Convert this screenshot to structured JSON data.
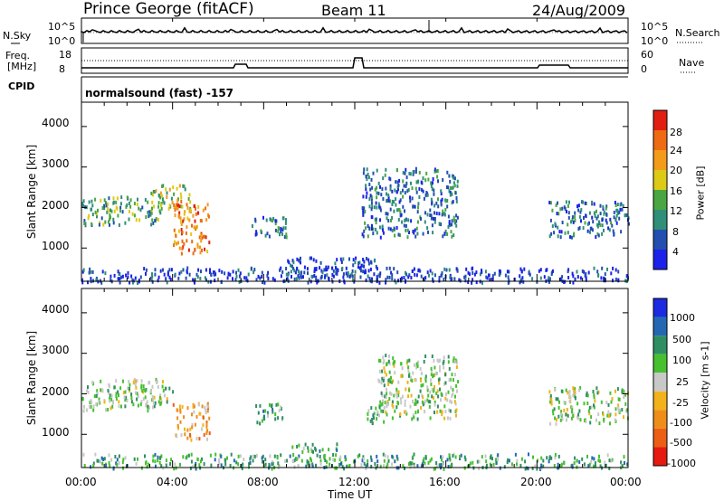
{
  "header": {
    "station": "Prince George (fitACF)",
    "beam": "Beam 11",
    "date": "24/Aug/2009"
  },
  "summary": {
    "nsky_label": "N.Sky",
    "nsky_ticks": [
      "10^5",
      "10^0"
    ],
    "nsearch_label": "N.Search",
    "nsearch_ticks": [
      "10^5",
      "10^0"
    ],
    "freq_label_1": "Freq.",
    "freq_label_2": "[MHz]",
    "freq_ticks": [
      "18",
      "8"
    ],
    "nave_label": "Nave",
    "nave_ticks": [
      "60",
      "0"
    ],
    "cpid_label": "CPID",
    "cpid_text": "normalsound (fast) -157"
  },
  "chart_data": [
    {
      "type": "heatmap",
      "name": "power-panel",
      "ylabel": "Slant Range [km]",
      "xlabel": "",
      "x_range_hours": [
        0,
        24
      ],
      "ylim": [
        180,
        4600
      ],
      "y_ticks": [
        1000,
        2000,
        3000,
        4000
      ],
      "colorbar": {
        "label": "Power [dB]",
        "ticks": [
          "4",
          "8",
          "12",
          "16",
          "20",
          "24",
          "28"
        ],
        "colors": [
          "#1b23e8",
          "#224fb0",
          "#2f8f78",
          "#4aa642",
          "#dcca16",
          "#f39b1a",
          "#ee6a13",
          "#e21e10"
        ]
      },
      "regions": [
        {
          "t0": 0.0,
          "t1": 3.5,
          "r0": 1600,
          "r1": 2300,
          "level": 3
        },
        {
          "t0": 3.0,
          "t1": 4.8,
          "r0": 2000,
          "r1": 2600,
          "level": 4
        },
        {
          "t0": 4.0,
          "t1": 5.6,
          "r0": 900,
          "r1": 2200,
          "level": 6
        },
        {
          "t0": 7.3,
          "t1": 9.0,
          "r0": 1300,
          "r1": 1800,
          "level": 2
        },
        {
          "t0": 9.0,
          "t1": 13.0,
          "r0": 300,
          "r1": 800,
          "level": 1
        },
        {
          "t0": 12.3,
          "t1": 16.5,
          "r0": 1300,
          "r1": 3000,
          "level": 2
        },
        {
          "t0": 20.5,
          "t1": 24.0,
          "r0": 1300,
          "r1": 2200,
          "level": 2
        },
        {
          "t0": 0.0,
          "t1": 24.0,
          "r0": 180,
          "r1": 550,
          "level": 1
        }
      ]
    },
    {
      "type": "heatmap",
      "name": "velocity-panel",
      "ylabel": "Slant Range [km]",
      "xlabel": "Time UT",
      "x_range_hours": [
        0,
        24
      ],
      "x_ticks": [
        "00:00",
        "04:00",
        "08:00",
        "12:00",
        "16:00",
        "20:00",
        "00:00"
      ],
      "ylim": [
        180,
        4600
      ],
      "y_ticks": [
        1000,
        2000,
        3000,
        4000
      ],
      "colorbar": {
        "label": "Velocity [m s-1]",
        "ticks": [
          "1000",
          "500",
          "100",
          "25",
          "-25",
          "-100",
          "-500",
          "-1000"
        ],
        "colors": [
          "#1c2ae0",
          "#2468b4",
          "#2f8f62",
          "#47c030",
          "#c8c8c8",
          "#f2b21c",
          "#ef8d19",
          "#ec5e15",
          "#e61a10"
        ]
      },
      "regions": [
        {
          "t0": 0.0,
          "t1": 4.0,
          "r0": 1600,
          "r1": 2400,
          "level": 4
        },
        {
          "t0": 4.0,
          "t1": 5.6,
          "r0": 900,
          "r1": 1800,
          "level": 6
        },
        {
          "t0": 7.5,
          "t1": 8.8,
          "r0": 1300,
          "r1": 1800,
          "level": 3
        },
        {
          "t0": 9.2,
          "t1": 11.2,
          "r0": 600,
          "r1": 800,
          "level": 3
        },
        {
          "t0": 12.5,
          "t1": 13.3,
          "r0": 1300,
          "r1": 1800,
          "level": 3
        },
        {
          "t0": 13.0,
          "t1": 16.5,
          "r0": 1400,
          "r1": 3000,
          "level": 4
        },
        {
          "t0": 20.5,
          "t1": 24.0,
          "r0": 1300,
          "r1": 2200,
          "level": 4
        },
        {
          "t0": 0.0,
          "t1": 24.0,
          "r0": 180,
          "r1": 550,
          "level": 3
        }
      ]
    }
  ]
}
